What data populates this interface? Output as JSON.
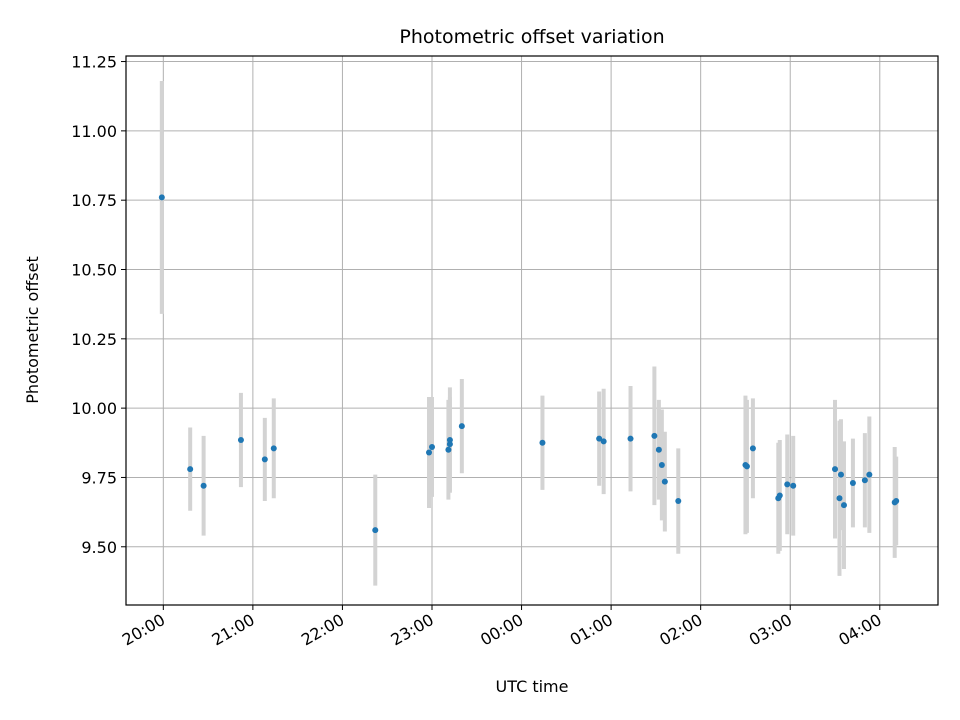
{
  "chart_data": {
    "type": "scatter",
    "title": "Photometric offset variation",
    "xlabel": "UTC time",
    "ylabel": "Photometric offset",
    "x_axis": "time",
    "xlim": [
      "19:35",
      "04:39"
    ],
    "xticks": [
      "20:00",
      "21:00",
      "22:00",
      "23:00",
      "00:00",
      "01:00",
      "02:00",
      "03:00",
      "04:00"
    ],
    "ylim": [
      9.29,
      11.27
    ],
    "yticks": [
      "9.50",
      "9.75",
      "10.00",
      "10.25",
      "10.50",
      "10.75",
      "11.00",
      "11.25"
    ],
    "grid": true,
    "colors": {
      "marker": "#1f77b4",
      "errorbar": "#d3d3d3",
      "grid": "#b0b0b0",
      "axes": "#000000"
    },
    "points": [
      {
        "x": "19:59",
        "y": 10.76,
        "err": 0.42
      },
      {
        "x": "20:18",
        "y": 9.78,
        "err": 0.15
      },
      {
        "x": "20:27",
        "y": 9.72,
        "err": 0.18
      },
      {
        "x": "20:52",
        "y": 9.885,
        "err": 0.17
      },
      {
        "x": "21:08",
        "y": 9.815,
        "err": 0.15
      },
      {
        "x": "21:14",
        "y": 9.855,
        "err": 0.18
      },
      {
        "x": "22:22",
        "y": 9.56,
        "err": 0.2
      },
      {
        "x": "22:58",
        "y": 9.84,
        "err": 0.2
      },
      {
        "x": "23:00",
        "y": 9.86,
        "err": 0.18
      },
      {
        "x": "23:11",
        "y": 9.85,
        "err": 0.18
      },
      {
        "x": "23:12",
        "y": 9.87,
        "err": 0.17
      },
      {
        "x": "23:12",
        "y": 9.885,
        "err": 0.19
      },
      {
        "x": "23:20",
        "y": 9.935,
        "err": 0.17
      },
      {
        "x": "00:14",
        "y": 9.875,
        "err": 0.17
      },
      {
        "x": "00:52",
        "y": 9.89,
        "err": 0.17
      },
      {
        "x": "00:55",
        "y": 9.88,
        "err": 0.19
      },
      {
        "x": "01:13",
        "y": 9.89,
        "err": 0.19
      },
      {
        "x": "01:29",
        "y": 9.9,
        "err": 0.25
      },
      {
        "x": "01:32",
        "y": 9.85,
        "err": 0.18
      },
      {
        "x": "01:34",
        "y": 9.795,
        "err": 0.2
      },
      {
        "x": "01:36",
        "y": 9.735,
        "err": 0.18
      },
      {
        "x": "01:45",
        "y": 9.665,
        "err": 0.19
      },
      {
        "x": "02:30",
        "y": 9.795,
        "err": 0.25
      },
      {
        "x": "02:31",
        "y": 9.79,
        "err": 0.24
      },
      {
        "x": "02:35",
        "y": 9.855,
        "err": 0.18
      },
      {
        "x": "02:52",
        "y": 9.675,
        "err": 0.2
      },
      {
        "x": "02:53",
        "y": 9.685,
        "err": 0.2
      },
      {
        "x": "02:58",
        "y": 9.725,
        "err": 0.18
      },
      {
        "x": "03:02",
        "y": 9.72,
        "err": 0.18
      },
      {
        "x": "03:30",
        "y": 9.78,
        "err": 0.25
      },
      {
        "x": "03:33",
        "y": 9.675,
        "err": 0.28
      },
      {
        "x": "03:34",
        "y": 9.76,
        "err": 0.2
      },
      {
        "x": "03:36",
        "y": 9.65,
        "err": 0.23
      },
      {
        "x": "03:42",
        "y": 9.73,
        "err": 0.16
      },
      {
        "x": "03:50",
        "y": 9.74,
        "err": 0.17
      },
      {
        "x": "03:53",
        "y": 9.76,
        "err": 0.21
      },
      {
        "x": "04:10",
        "y": 9.66,
        "err": 0.2
      },
      {
        "x": "04:11",
        "y": 9.665,
        "err": 0.16
      }
    ]
  }
}
